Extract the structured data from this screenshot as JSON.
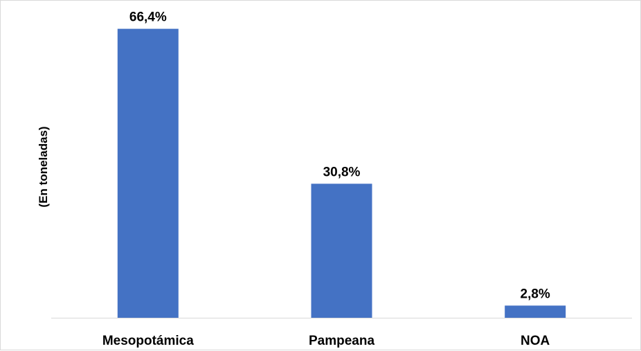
{
  "chart_data": {
    "type": "bar",
    "title": "",
    "xlabel": "",
    "ylabel": "(En toneladas)",
    "categories": [
      "Mesopotámica",
      "Pampeana",
      "NOA"
    ],
    "values": [
      66.4,
      30.8,
      2.8
    ],
    "value_labels": [
      "66,4%",
      "30,8%",
      "2,8%"
    ],
    "ylim": [
      0,
      70
    ],
    "grid": false,
    "legend": "none",
    "bar_color": "#4472c4",
    "axis_color": "#d9d9d9"
  }
}
